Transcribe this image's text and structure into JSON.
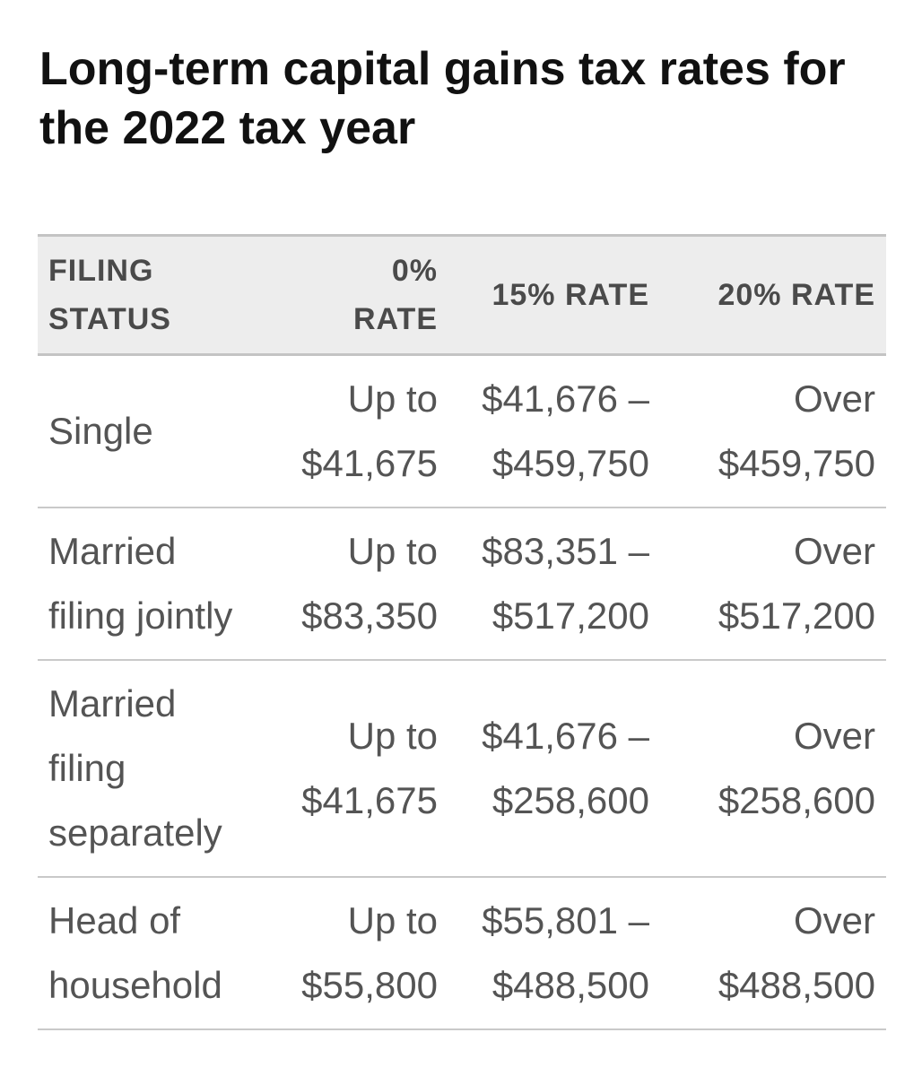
{
  "title": "Long-term capital gains tax rates for the 2022 tax year",
  "table": {
    "headers": {
      "filing_status": [
        "FILING",
        "STATUS"
      ],
      "rate_0": "0% RATE",
      "rate_15": "15% RATE",
      "rate_20": "20% RATE"
    },
    "rows": [
      {
        "status": [
          "Single"
        ],
        "rate_0": [
          "Up to",
          "$41,675"
        ],
        "rate_15": [
          "$41,676 –",
          "$459,750"
        ],
        "rate_20": [
          "Over",
          "$459,750"
        ]
      },
      {
        "status": [
          "Married",
          "filing jointly"
        ],
        "rate_0": [
          "Up to",
          "$83,350"
        ],
        "rate_15": [
          "$83,351 –",
          "$517,200"
        ],
        "rate_20": [
          "Over",
          "$517,200"
        ]
      },
      {
        "status": [
          "Married",
          "filing",
          "separately"
        ],
        "rate_0": [
          "Up to",
          "$41,675"
        ],
        "rate_15": [
          "$41,676 –",
          "$258,600"
        ],
        "rate_20": [
          "Over",
          "$258,600"
        ]
      },
      {
        "status": [
          "Head of",
          "household"
        ],
        "rate_0": [
          "Up to",
          "$55,800"
        ],
        "rate_15": [
          "$55,801 –",
          "$488,500"
        ],
        "rate_20": [
          "Over",
          "$488,500"
        ]
      }
    ]
  }
}
